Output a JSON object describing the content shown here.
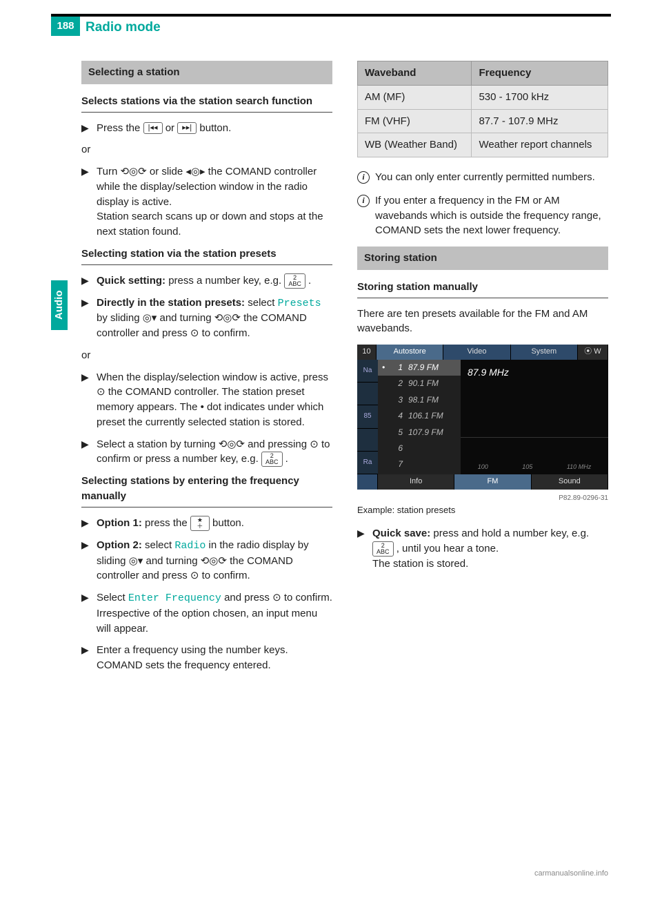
{
  "page": {
    "number": "188",
    "title": "Radio mode",
    "side_tab": "Audio"
  },
  "col1": {
    "section": "Selecting a station",
    "sub1": "Selects stations via the station search function",
    "step1_pre": "Press the ",
    "step1_btn1": "|◂◂",
    "step1_mid": " or ",
    "step1_btn2": "▸▸|",
    "step1_post": " button.",
    "or": "or",
    "step2": "Turn ⟲◎⟳ or slide ◂◎▸ the COMAND controller while the display/selection window in the radio display is active.\nStation search scans up or down and stops at the next station found.",
    "sub2": "Selecting station via the station presets",
    "quick_label": "Quick setting:",
    "quick_text_pre": " press a number key, e.g. ",
    "quick_btn": "2\nABC",
    "quick_text_post": ".",
    "direct_label": "Directly in the station presets:",
    "direct_text_1": " select ",
    "direct_presets": "Presets",
    "direct_text_2": " by sliding ◎▾ and turning ⟲◎⟳ the COMAND controller and press ⊙ to confirm.",
    "step_window": "When the display/selection window is active, press ⊙ the COMAND controller. The station preset memory appears. The • dot indicates under which preset the currently selected station is stored.",
    "step_select": "Select a station by turning ⟲◎⟳ and pressing ⊙ to confirm or press a number key, e.g. ",
    "step_select_btn": "2\nABC",
    "step_select_post": ".",
    "sub3": "Selecting stations by entering the frequency manually",
    "opt1_label": "Option 1:",
    "opt1_text_pre": " press the ",
    "opt1_btn": "★\n＋",
    "opt1_text_post": " button.",
    "opt2_label": "Option 2:",
    "opt2_text_1": " select ",
    "opt2_radio": "Radio",
    "opt2_text_2": " in the radio display by sliding ◎▾ and turning ⟲◎⟳ the COMAND controller and press ⊙ to confirm.",
    "enter_pre": "Select ",
    "enter_freq": "Enter Frequency",
    "enter_post": " and press ⊙ to confirm.\nIrrespective of the option chosen, an input menu will appear.",
    "enter_num": "Enter a frequency using the number keys. COMAND sets the frequency entered."
  },
  "col2": {
    "table": {
      "headers": [
        "Waveband",
        "Frequency"
      ],
      "rows": [
        [
          "AM (MF)",
          "530 - 1700 kHz"
        ],
        [
          "FM (VHF)",
          "87.7 - 107.9 MHz"
        ],
        [
          "WB (Weather Band)",
          "Weather report channels"
        ]
      ]
    },
    "info1": "You can only enter currently permitted numbers.",
    "info2": "If you enter a frequency in the FM or AM wavebands which is outside the frequency range, COMAND sets the next lower frequency.",
    "section": "Storing station",
    "sub1": "Storing station manually",
    "intro": "There are ten presets available for the FM and AM wavebands.",
    "screenshot": {
      "top_left": "10",
      "top_tabs": [
        "Autostore",
        "Video",
        "System"
      ],
      "top_right": "⦿ W",
      "left_labels": [
        "Na",
        "",
        "85",
        "",
        "Ra"
      ],
      "presets": [
        {
          "n": "1",
          "f": "87.9 FM",
          "sel": true,
          "dot": true
        },
        {
          "n": "2",
          "f": "90.1 FM"
        },
        {
          "n": "3",
          "f": "98.1 FM"
        },
        {
          "n": "4",
          "f": "106.1 FM"
        },
        {
          "n": "5",
          "f": "107.9 FM"
        },
        {
          "n": "6",
          "f": ""
        },
        {
          "n": "7",
          "f": ""
        }
      ],
      "current_freq": "87.9 MHz",
      "dial_marks": [
        "100",
        "105",
        "110 MHz"
      ],
      "bottom_tabs": [
        "",
        "Info",
        "FM",
        "Sound"
      ],
      "image_code": "P82.89-0296-31"
    },
    "caption": "Example: station presets",
    "quick_label": "Quick save:",
    "quick_text_pre": " press and hold a number key, e.g. ",
    "quick_btn": "2\nABC",
    "quick_text_post": ", until you hear a tone.\nThe station is stored."
  },
  "watermark": "carmanualsonline.info"
}
